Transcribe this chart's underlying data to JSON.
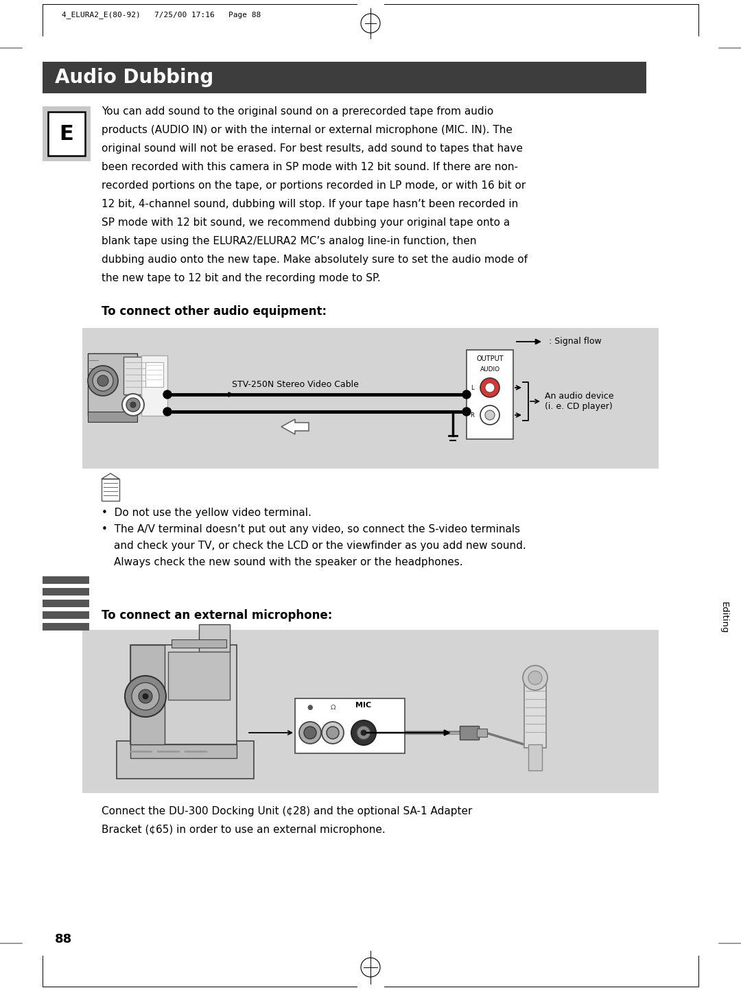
{
  "page_bg": "#ffffff",
  "header_text": "4_ELURA2_E(80-92)   7/25/00 17:16   Page 88",
  "title": "Audio Dubbing",
  "title_bg": "#3d3d3d",
  "title_color": "#ffffff",
  "body_text_lines": [
    "You can add sound to the original sound on a prerecorded tape from audio",
    "products (AUDIO IN) or with the internal or external microphone (MIC. IN). The",
    "original sound will not be erased. For best results, add sound to tapes that have",
    "been recorded with this camera in SP mode with 12 bit sound. If there are non-",
    "recorded portions on the tape, or portions recorded in LP mode, or with 16 bit or",
    "12 bit, 4-channel sound, dubbing will stop. If your tape hasn’t been recorded in",
    "SP mode with 12 bit sound, we recommend dubbing your original tape onto a",
    "blank tape using the ELURA2/ELURA2 MC’s analog line-in function, then",
    "dubbing audio onto the new tape. Make absolutely sure to set the audio mode of",
    "the new tape to 12 bit and the recording mode to SP."
  ],
  "section1_title": "To connect other audio equipment:",
  "diagram1_bg": "#d4d4d4",
  "signal_flow_text": ": Signal flow",
  "stv_label": "STV-250N Stereo Video Cable",
  "output_label": "OUTPUT",
  "audio_label": "AUDIO",
  "device_label": "An audio device\n(i. e. CD player)",
  "note_text1": "Do not use the yellow video terminal.",
  "note_text2_line1": "The A/V terminal doesn’t put out any video, so connect the S-video terminals",
  "note_text2_line2": "and check your TV, or check the LCD or the viewfinder as you add new sound.",
  "note_text2_line3": "Always check the new sound with the speaker or the headphones.",
  "section2_title": "To connect an external microphone:",
  "diagram2_bg": "#d4d4d4",
  "mic_label": "MIC",
  "bottom_text_line1": "Connect the DU-300 Docking Unit (¢28) and the optional SA-1 Adapter",
  "bottom_text_line2": "Bracket (¢65) in order to use an external microphone.",
  "page_number": "88",
  "editing_text": "Editing",
  "e_box_color": "#c8c8c8",
  "side_bar_color": "#555555"
}
